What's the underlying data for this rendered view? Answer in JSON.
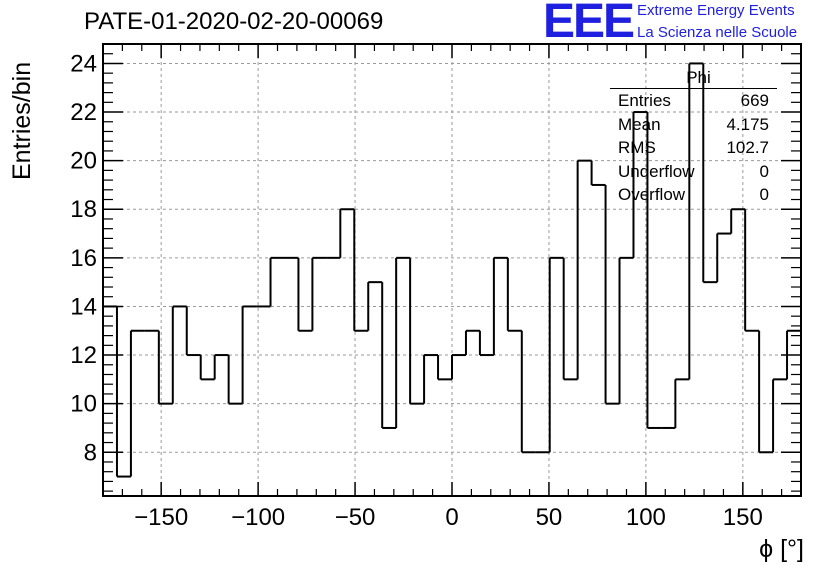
{
  "header": {
    "title": "PATE-01-2020-02-20-00069",
    "logo_text": "EEE",
    "logo_line1": "Extreme Energy Events",
    "logo_line2": "La Scienza nelle Scuole"
  },
  "stats_box": {
    "name": "Phi",
    "rows": [
      {
        "label": "Entries",
        "value": "669"
      },
      {
        "label": "Mean",
        "value": "4.175"
      },
      {
        "label": "RMS",
        "value": "102.7"
      },
      {
        "label": "Underflow",
        "value": "0"
      },
      {
        "label": "Overflow",
        "value": "0"
      }
    ]
  },
  "chart_data": {
    "type": "bar",
    "style": "step-histogram",
    "title": "PATE-01-2020-02-20-00069",
    "xlabel": "ϕ [°]",
    "ylabel": "Entries/bin",
    "xlim": [
      -180,
      180
    ],
    "ylim": [
      6.2,
      24.8
    ],
    "bin_width": 7.2,
    "bin_edges_start": -180,
    "grid": true,
    "xticks": [
      -150,
      -100,
      -50,
      0,
      50,
      100,
      150
    ],
    "xtick_labels": [
      "−150",
      "−100",
      "−50",
      "0",
      "50",
      "100",
      "150"
    ],
    "yticks": [
      8,
      10,
      12,
      14,
      16,
      18,
      20,
      22,
      24
    ],
    "ytick_labels": [
      "8",
      "10",
      "12",
      "14",
      "16",
      "18",
      "20",
      "22",
      "24"
    ],
    "values": [
      14,
      7,
      13,
      13,
      10,
      14,
      12,
      11,
      12,
      10,
      14,
      14,
      16,
      16,
      13,
      16,
      16,
      18,
      13,
      15,
      9,
      16,
      10,
      12,
      11,
      12,
      13,
      12,
      16,
      13,
      8,
      8,
      16,
      11,
      20,
      19,
      10,
      16,
      22,
      9,
      9,
      11,
      24,
      15,
      17,
      18,
      13,
      8,
      11,
      13
    ],
    "line_color": "#000000"
  }
}
